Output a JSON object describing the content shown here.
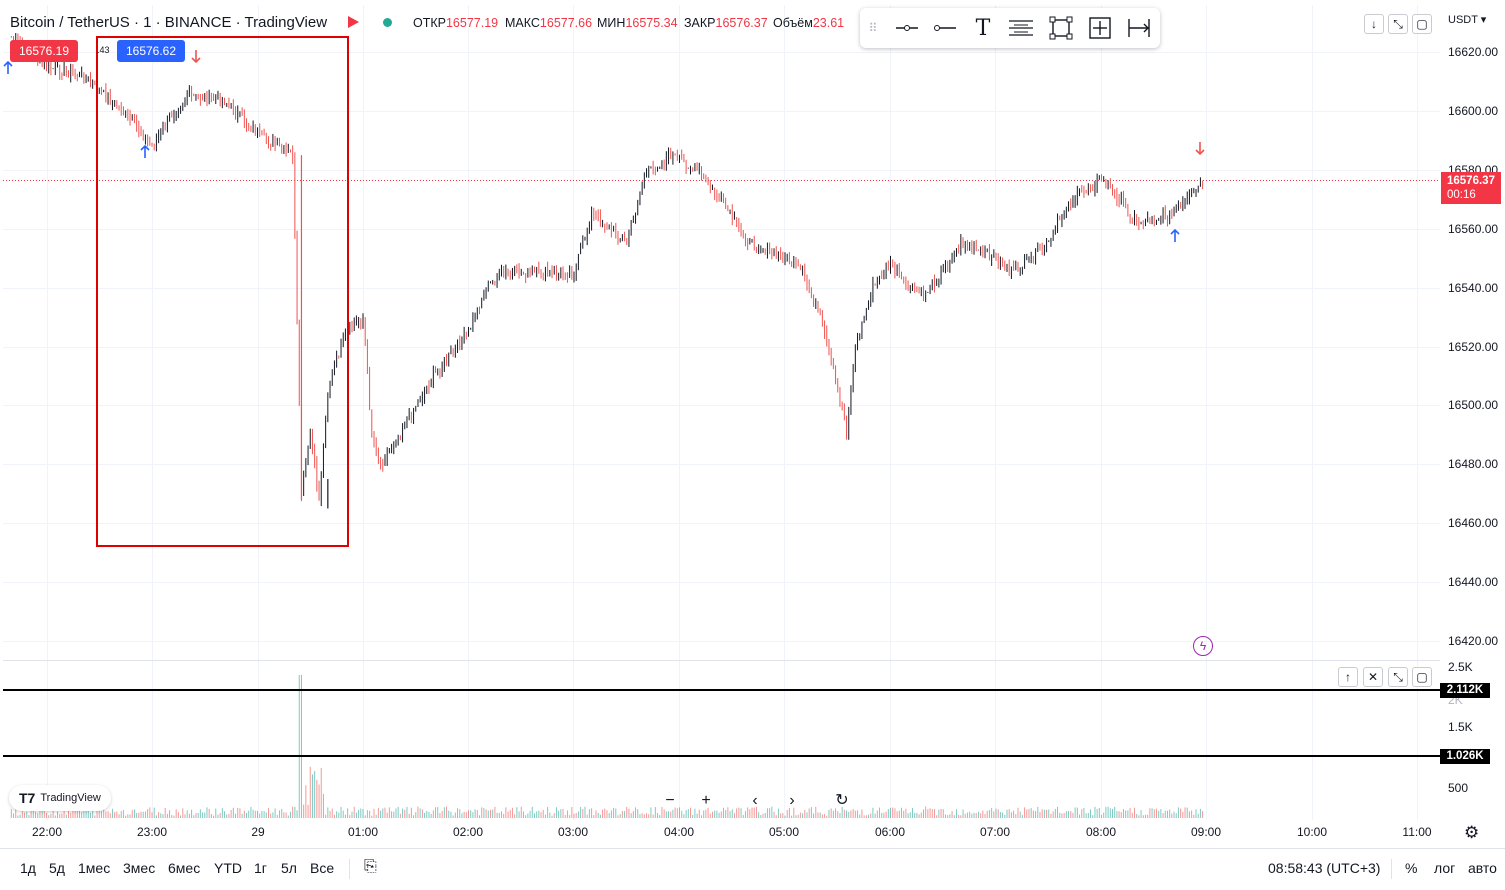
{
  "header": {
    "title": "Bitcoin / TetherUS · 1 · BINANCE · TradingView",
    "ohlc": [
      {
        "label": "ОТКР",
        "value": "16577.19"
      },
      {
        "label": "МАКС",
        "value": "16577.66"
      },
      {
        "label": "МИН",
        "value": "16575.34"
      },
      {
        "label": "ЗАКР",
        "value": "16576.37"
      },
      {
        "label": "Объём",
        "value": "23.61"
      }
    ],
    "sell_tag": "16576.19",
    "buy_tag": "16576.62",
    "spread": ".43"
  },
  "price_axis": {
    "currency": "USDT",
    "labels": [
      "16620.00",
      "16600.00",
      "16580.00",
      "16560.00",
      "16540.00",
      "16520.00",
      "16500.00",
      "16480.00",
      "16460.00",
      "16440.00",
      "16420.00"
    ],
    "current_price": "16576.37",
    "countdown": "00:16"
  },
  "volume_axis": {
    "labels": [
      "2.5K",
      "2K",
      "1.5K",
      "500"
    ],
    "hline_upper": "2.112K",
    "hline_lower": "1.026K"
  },
  "time_axis": {
    "labels": [
      "22:00",
      "23:00",
      "29",
      "01:00",
      "02:00",
      "03:00",
      "04:00",
      "05:00",
      "06:00",
      "07:00",
      "08:00",
      "09:00",
      "10:00",
      "11:00"
    ]
  },
  "watermark": "TradingView",
  "bottom_bar": {
    "ranges": [
      "1д",
      "5д",
      "1мес",
      "3мес",
      "6мес",
      "YTD",
      "1г",
      "5л",
      "Все"
    ],
    "clock": "08:58:43 (UTC+3)",
    "percent": "%",
    "log": "лог",
    "auto": "авто"
  },
  "colors": {
    "up": "#26a69a",
    "down": "#ef5350",
    "candle": "#131722",
    "price_tag": "#f23645",
    "buy_tag": "#2962ff",
    "highlight_box": "#e00000"
  },
  "chart_data": {
    "type": "candlestick",
    "series": [
      {
        "name": "Bitcoin / TetherUS",
        "points": [
          [
            "21:40",
            16625
          ],
          [
            "22:00",
            16615
          ],
          [
            "22:20",
            16612
          ],
          [
            "22:40",
            16602
          ],
          [
            "23:00",
            16588
          ],
          [
            "23:10",
            16598
          ],
          [
            "23:20",
            16605
          ],
          [
            "23:40",
            16604
          ],
          [
            "23:55",
            16595
          ],
          [
            "00:05",
            16590
          ],
          [
            "00:20",
            16585
          ],
          [
            "00:25",
            16470
          ],
          [
            "00:30",
            16490
          ],
          [
            "00:35",
            16468
          ],
          [
            "00:40",
            16505
          ],
          [
            "00:50",
            16525
          ],
          [
            "01:00",
            16530
          ],
          [
            "01:05",
            16490
          ],
          [
            "01:10",
            16480
          ],
          [
            "01:20",
            16490
          ],
          [
            "01:40",
            16510
          ],
          [
            "02:00",
            16525
          ],
          [
            "02:10",
            16540
          ],
          [
            "02:20",
            16545
          ],
          [
            "02:40",
            16545
          ],
          [
            "03:00",
            16545
          ],
          [
            "03:10",
            16565
          ],
          [
            "03:30",
            16555
          ],
          [
            "03:40",
            16578
          ],
          [
            "03:55",
            16585
          ],
          [
            "04:10",
            16580
          ],
          [
            "04:25",
            16568
          ],
          [
            "04:40",
            16555
          ],
          [
            "05:00",
            16550
          ],
          [
            "05:10",
            16545
          ],
          [
            "05:20",
            16530
          ],
          [
            "05:30",
            16505
          ],
          [
            "05:35",
            16492
          ],
          [
            "05:40",
            16520
          ],
          [
            "05:50",
            16540
          ],
          [
            "06:00",
            16548
          ],
          [
            "06:10",
            16540
          ],
          [
            "06:20",
            16538
          ],
          [
            "06:40",
            16555
          ],
          [
            "07:00",
            16550
          ],
          [
            "07:10",
            16545
          ],
          [
            "07:30",
            16555
          ],
          [
            "07:40",
            16568
          ],
          [
            "08:00",
            16577
          ],
          [
            "08:10",
            16570
          ],
          [
            "08:20",
            16562
          ],
          [
            "08:40",
            16565
          ],
          [
            "08:50",
            16570
          ],
          [
            "08:58",
            16576.37
          ]
        ]
      }
    ],
    "ylim": [
      16410,
      16630
    ],
    "volume_peak": 2500
  }
}
